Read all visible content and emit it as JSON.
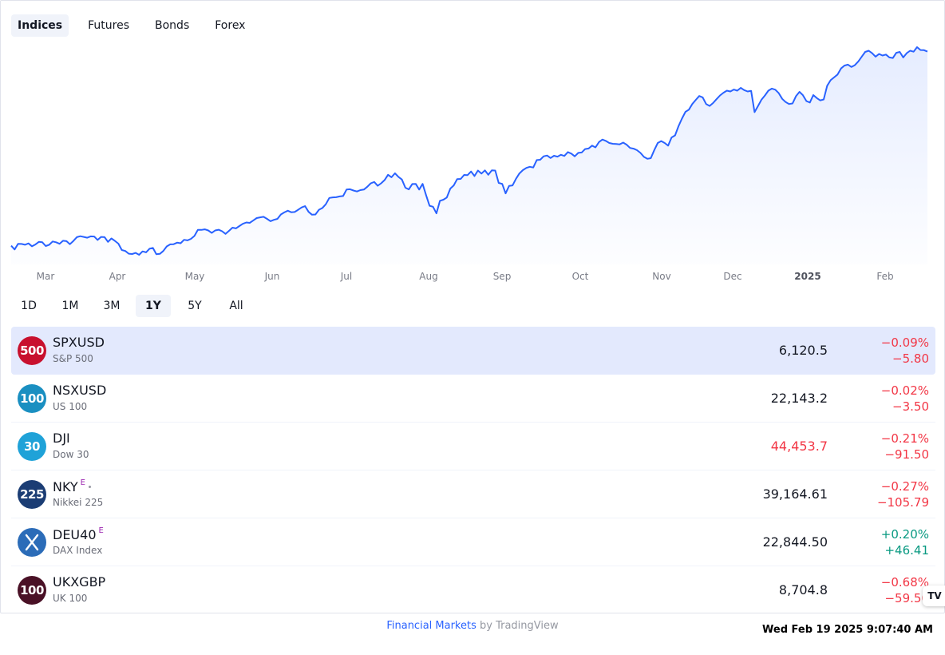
{
  "tabs": [
    {
      "label": "Indices",
      "active": true
    },
    {
      "label": "Futures",
      "active": false
    },
    {
      "label": "Bonds",
      "active": false
    },
    {
      "label": "Forex",
      "active": false
    }
  ],
  "chart_data": {
    "type": "area",
    "series_color": "#2962ff",
    "x_tick_labels": [
      "Mar",
      "Apr",
      "May",
      "Jun",
      "Jul",
      "Aug",
      "Sep",
      "Oct",
      "Nov",
      "Dec",
      "2025",
      "Feb"
    ],
    "bold_tick": "2025",
    "values": [
      5100,
      5080,
      5110,
      5109,
      5105,
      5112,
      5097,
      5106,
      5120,
      5118,
      5098,
      5105,
      5122,
      5118,
      5110,
      5126,
      5124,
      5108,
      5125,
      5145,
      5150,
      5146,
      5142,
      5149,
      5148,
      5130,
      5146,
      5145,
      5120,
      5138,
      5125,
      5111,
      5077,
      5072,
      5058,
      5056,
      5062,
      5052,
      5070,
      5065,
      5084,
      5088,
      5055,
      5057,
      5072,
      5096,
      5107,
      5108,
      5116,
      5113,
      5131,
      5128,
      5136,
      5151,
      5183,
      5183,
      5186,
      5180,
      5167,
      5180,
      5184,
      5176,
      5162,
      5178,
      5195,
      5191,
      5203,
      5215,
      5222,
      5220,
      5232,
      5245,
      5249,
      5252,
      5241,
      5229,
      5236,
      5241,
      5264,
      5275,
      5284,
      5276,
      5277,
      5289,
      5301,
      5308,
      5278,
      5263,
      5264,
      5289,
      5298,
      5318,
      5351,
      5354,
      5355,
      5359,
      5361,
      5395,
      5397,
      5390,
      5385,
      5392,
      5395,
      5410,
      5428,
      5435,
      5415,
      5428,
      5445,
      5473,
      5460,
      5481,
      5462,
      5448,
      5405,
      5396,
      5424,
      5425,
      5395,
      5425,
      5366,
      5310,
      5305,
      5270,
      5336,
      5342,
      5353,
      5400,
      5417,
      5450,
      5451,
      5472,
      5471,
      5490,
      5466,
      5495,
      5479,
      5496,
      5473,
      5496,
      5495,
      5430,
      5425,
      5375,
      5414,
      5417,
      5452,
      5480,
      5497,
      5509,
      5515,
      5511,
      5550,
      5552,
      5570,
      5574,
      5561,
      5573,
      5568,
      5578,
      5572,
      5592,
      5584,
      5570,
      5588,
      5590,
      5608,
      5611,
      5626,
      5617,
      5645,
      5658,
      5651,
      5640,
      5636,
      5635,
      5633,
      5642,
      5631,
      5614,
      5610,
      5602,
      5588,
      5567,
      5557,
      5560,
      5603,
      5640,
      5650,
      5640,
      5626,
      5669,
      5680,
      5728,
      5768,
      5804,
      5815,
      5845,
      5867,
      5887,
      5880,
      5845,
      5835,
      5850,
      5870,
      5890,
      5904,
      5915,
      5911,
      5921,
      5915,
      5930,
      5918,
      5911,
      5914,
      5802,
      5834,
      5868,
      5890,
      5915,
      5926,
      5920,
      5902,
      5872,
      5855,
      5845,
      5848,
      5887,
      5909,
      5891,
      5860,
      5853,
      5892,
      5876,
      5864,
      5869,
      5941,
      5970,
      5985,
      6000,
      6032,
      6047,
      6052,
      6040,
      6049,
      6069,
      6094,
      6119,
      6125,
      6112,
      6094,
      6108,
      6100,
      6105,
      6090,
      6087,
      6114,
      6119,
      6090,
      6112,
      6125,
      6120,
      6144,
      6129,
      6128,
      6120.5
    ],
    "grid": false,
    "legend": "none"
  },
  "range_buttons": [
    {
      "label": "1D",
      "active": false
    },
    {
      "label": "1M",
      "active": false
    },
    {
      "label": "3M",
      "active": false
    },
    {
      "label": "1Y",
      "active": true
    },
    {
      "label": "5Y",
      "active": false
    },
    {
      "label": "All",
      "active": false
    }
  ],
  "rows": [
    {
      "logo": "500",
      "logo_color": "#c8102e",
      "symbol": "SPXUSD",
      "badge": "",
      "dot": false,
      "name": "S&P 500",
      "price": "6,120.5",
      "price_dir": "flat",
      "change_pct": "−0.09%",
      "change_abs": "−5.80",
      "dir": "neg",
      "selected": true
    },
    {
      "logo": "100",
      "logo_color": "#1a8fc1",
      "symbol": "NSXUSD",
      "badge": "",
      "dot": false,
      "name": "US 100",
      "price": "22,143.2",
      "price_dir": "flat",
      "change_pct": "−0.02%",
      "change_abs": "−3.50",
      "dir": "neg",
      "selected": false
    },
    {
      "logo": "30",
      "logo_color": "#1fa2d8",
      "symbol": "DJI",
      "badge": "",
      "dot": false,
      "name": "Dow 30",
      "price": "44,453.7",
      "price_dir": "neg",
      "change_pct": "−0.21%",
      "change_abs": "−91.50",
      "dir": "neg",
      "selected": false
    },
    {
      "logo": "225",
      "logo_color": "#1b3d74",
      "symbol": "NKY",
      "badge": "E",
      "dot": true,
      "name": "Nikkei 225",
      "price": "39,164.61",
      "price_dir": "flat",
      "change_pct": "−0.27%",
      "change_abs": "−105.79",
      "dir": "neg",
      "selected": false
    },
    {
      "logo": "",
      "logo_color": "#2b6cb8",
      "symbol": "DEU40",
      "badge": "E",
      "dot": false,
      "name": "DAX Index",
      "price": "22,844.50",
      "price_dir": "flat",
      "change_pct": "+0.20%",
      "change_abs": "+46.41",
      "dir": "pos",
      "selected": false
    },
    {
      "logo": "100",
      "logo_color": "#4a1126",
      "symbol": "UKXGBP",
      "badge": "",
      "dot": false,
      "name": "UK 100",
      "price": "8,704.8",
      "price_dir": "flat",
      "change_pct": "−0.68%",
      "change_abs": "−59.50",
      "dir": "neg",
      "selected": false
    }
  ],
  "footer": {
    "link": "Financial Markets",
    "suffix": " by TradingView"
  },
  "clock": "Wed Feb 19 2025 9:07:40 AM",
  "tv_logo": "TV"
}
